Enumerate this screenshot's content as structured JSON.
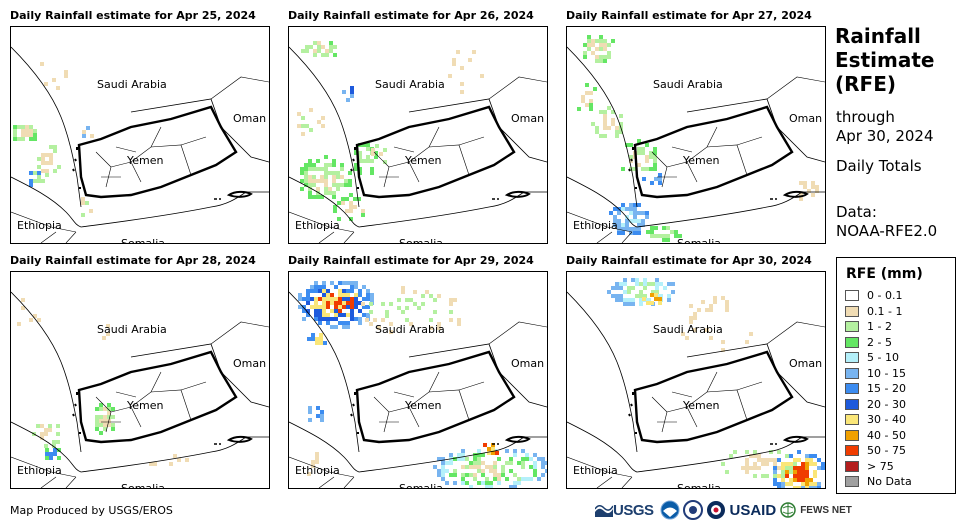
{
  "panels": [
    {
      "title": "Daily Rainfall estimate for Apr 25, 2024"
    },
    {
      "title": "Daily Rainfall estimate for Apr 26, 2024"
    },
    {
      "title": "Daily Rainfall estimate for Apr 27, 2024"
    },
    {
      "title": "Daily Rainfall estimate for Apr 28, 2024"
    },
    {
      "title": "Daily Rainfall estimate for Apr 29, 2024"
    },
    {
      "title": "Daily Rainfall estimate for Apr 30, 2024"
    }
  ],
  "countries": {
    "saudi": "Saudi Arabia",
    "oman": "Oman",
    "yemen": "Yemen",
    "ethiopia": "Ethiopia",
    "somalia": "Somalia"
  },
  "sidebar": {
    "title_lines": [
      "Rainfall",
      "Estimate",
      "(RFE)"
    ],
    "through": "through",
    "date": "Apr 30, 2024",
    "totals": "Daily Totals",
    "data_label": "Data:",
    "data_source": "NOAA-RFE2.0"
  },
  "legend": {
    "title": "RFE (mm)",
    "items": [
      {
        "label": "0 - 0.1",
        "color": "#ffffff"
      },
      {
        "label": "0.1 - 1",
        "color": "#f0dcb4"
      },
      {
        "label": "1 - 2",
        "color": "#b4f0a0"
      },
      {
        "label": "2 - 5",
        "color": "#64e664"
      },
      {
        "label": "5 - 10",
        "color": "#b4f0fa"
      },
      {
        "label": "10 - 15",
        "color": "#78b4f0"
      },
      {
        "label": "15 - 20",
        "color": "#3c8cf0"
      },
      {
        "label": "20 - 30",
        "color": "#1e5adc"
      },
      {
        "label": "30 - 40",
        "color": "#fae678"
      },
      {
        "label": "40 - 50",
        "color": "#f0a000"
      },
      {
        "label": "50 - 75",
        "color": "#f03c00"
      },
      {
        "label": "> 75",
        "color": "#b41e1e"
      },
      {
        "label": "No Data",
        "color": "#a0a0a0"
      }
    ]
  },
  "credit": "Map Produced by USGS/EROS",
  "logos": {
    "usgs": "USGS",
    "usaid": "USAID",
    "fews": "FEWS NET"
  }
}
